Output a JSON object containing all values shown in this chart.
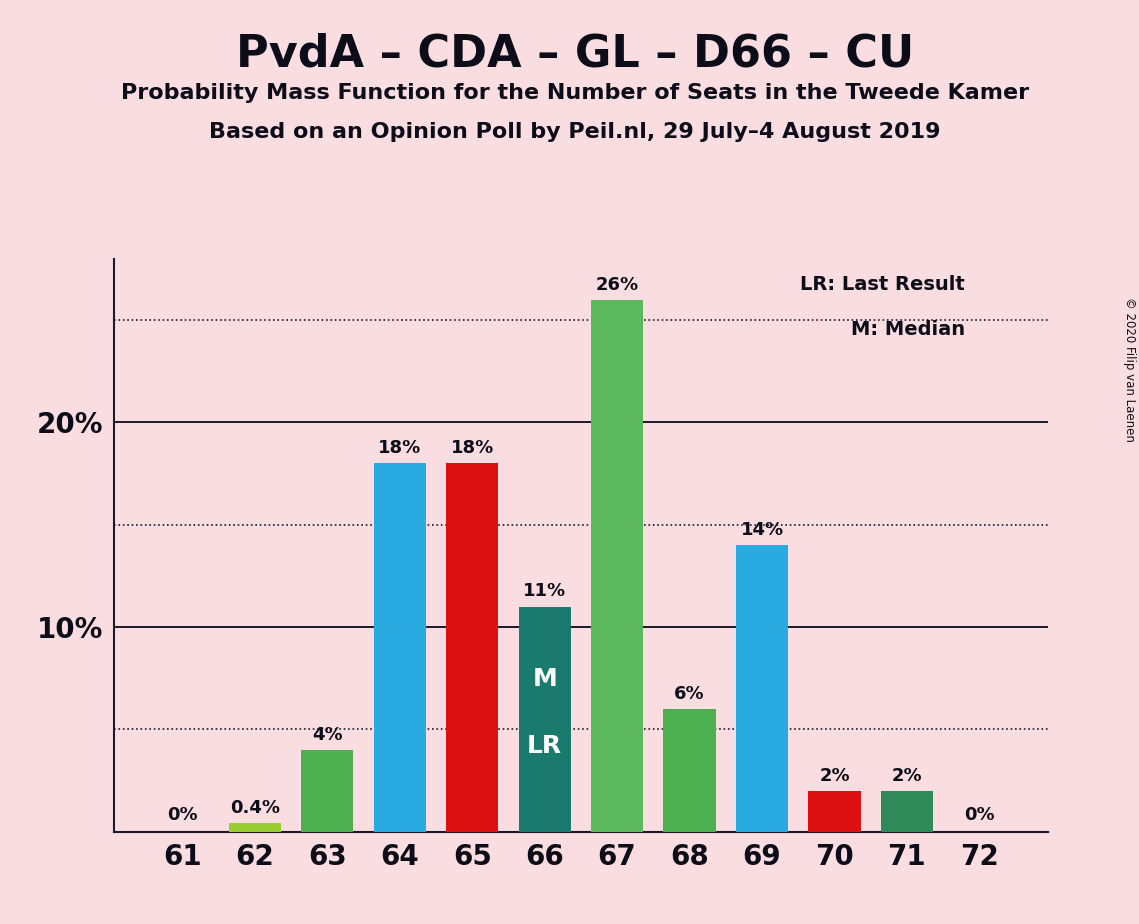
{
  "title": "PvdA – CDA – GL – D66 – CU",
  "subtitle1": "Probability Mass Function for the Number of Seats in the Tweede Kamer",
  "subtitle2": "Based on an Opinion Poll by Peil.nl, 29 July–4 August 2019",
  "copyright": "© 2020 Filip van Laenen",
  "seats": [
    61,
    62,
    63,
    64,
    65,
    66,
    67,
    68,
    69,
    70,
    71,
    72
  ],
  "values": [
    0.0,
    0.4,
    4.0,
    18.0,
    18.0,
    11.0,
    26.0,
    6.0,
    14.0,
    2.0,
    2.0,
    0.0
  ],
  "labels": [
    "0%",
    "0.4%",
    "4%",
    "18%",
    "18%",
    "11%",
    "26%",
    "6%",
    "14%",
    "2%",
    "2%",
    "0%"
  ],
  "colors": [
    "#4caf50",
    "#9acd32",
    "#4caf50",
    "#29abe2",
    "#dd1111",
    "#1a7a6e",
    "#5cb85c",
    "#4caf50",
    "#29abe2",
    "#dd1111",
    "#2e8b57",
    "#4caf50"
  ],
  "legend_text1": "LR: Last Result",
  "legend_text2": "M: Median",
  "background_color": "#f9dde0",
  "grid_color": "#1a1a2e",
  "title_color": "#0d0d1a",
  "ylim": [
    0,
    28
  ],
  "dotted_lines": [
    5,
    15,
    25
  ],
  "solid_lines": [
    10,
    20
  ],
  "bar_width": 0.72
}
